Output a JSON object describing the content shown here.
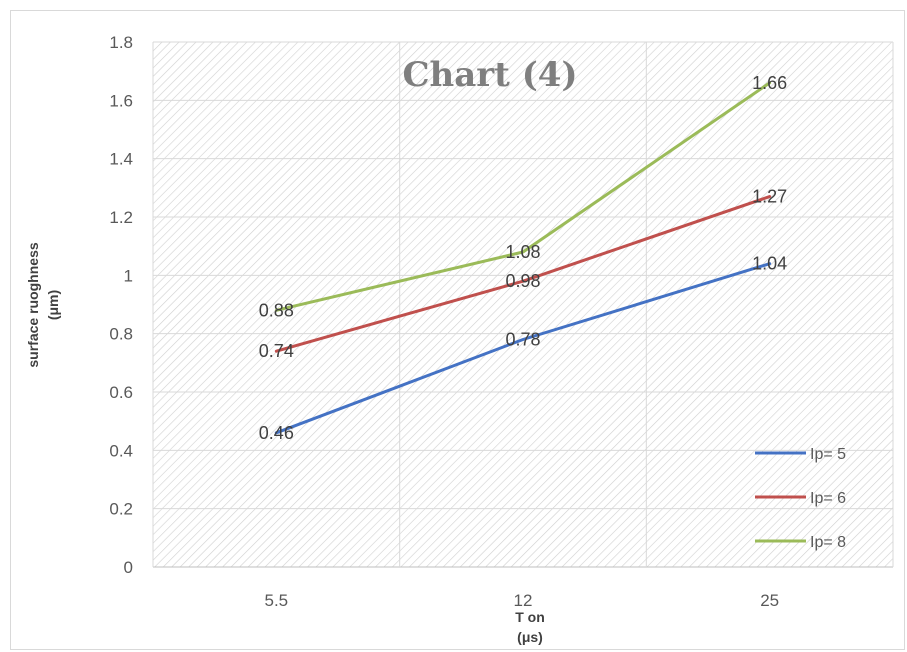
{
  "chart_data": {
    "type": "line",
    "title": "Chart (4)",
    "xlabel": "T on",
    "xlabel_unit": "(μs)",
    "ylabel": "surface ruoghness",
    "ylabel_unit": "(μm)",
    "categories": [
      "5.5",
      "12",
      "25"
    ],
    "ylim": [
      0,
      1.8
    ],
    "ytick_step": 0.2,
    "yticks": [
      "0",
      "0.2",
      "0.4",
      "0.6",
      "0.8",
      "1",
      "1.2",
      "1.4",
      "1.6",
      "1.8"
    ],
    "grid": true,
    "legend_position": "bottom-right",
    "series": [
      {
        "name": "Ip= 5",
        "values": [
          0.46,
          0.78,
          1.04
        ],
        "labels": [
          "0.46",
          "0.78",
          "1.04"
        ],
        "color": "#4472c4"
      },
      {
        "name": "Ip= 6",
        "values": [
          0.74,
          0.98,
          1.27
        ],
        "labels": [
          "0.74",
          "0.98",
          "1.27"
        ],
        "color": "#c0504d"
      },
      {
        "name": "Ip= 8",
        "values": [
          0.88,
          1.08,
          1.66
        ],
        "labels": [
          "0.88",
          "1.08",
          "1.66"
        ],
        "color": "#9bbb59"
      }
    ]
  }
}
